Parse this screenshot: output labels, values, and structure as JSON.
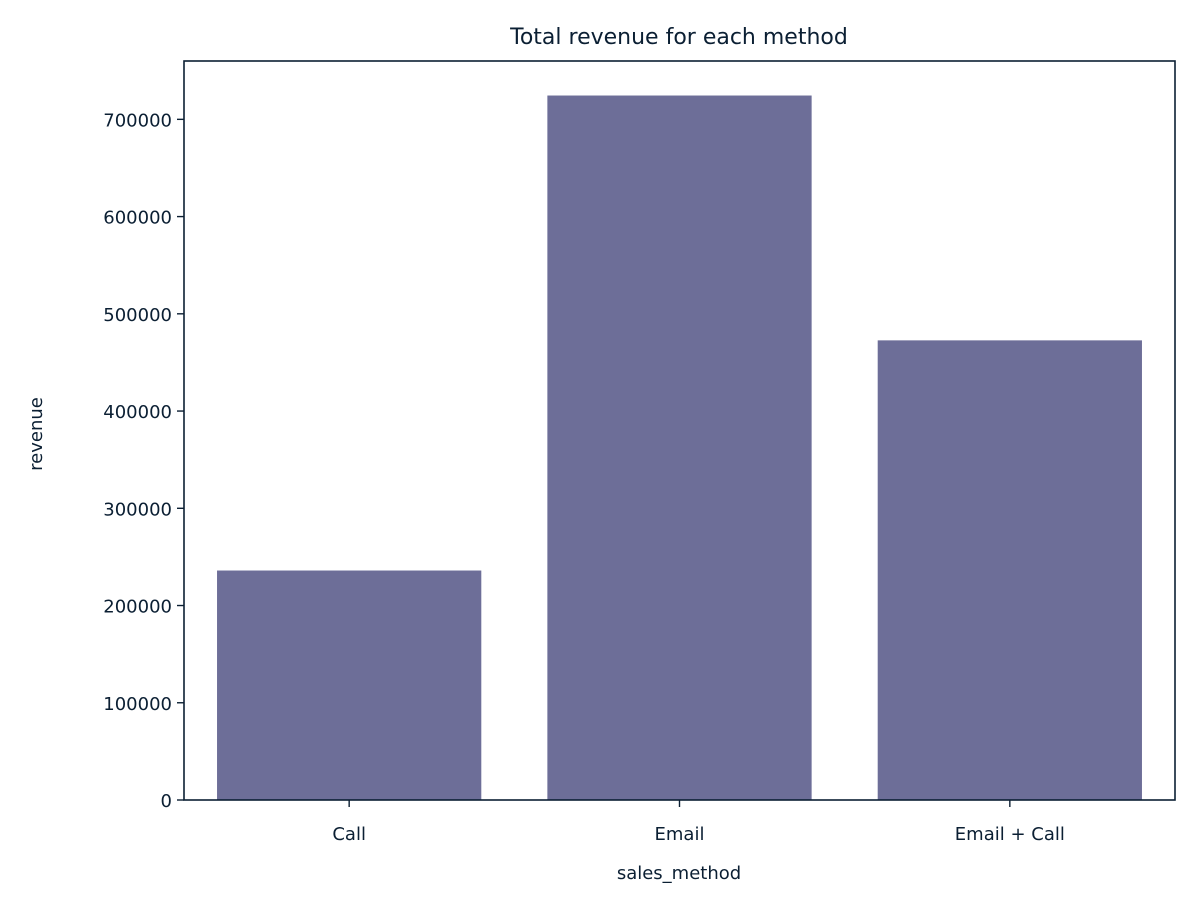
{
  "chart_data": {
    "type": "bar",
    "title": "Total revenue for each method",
    "xlabel": "sales_method",
    "ylabel": "revenue",
    "categories": [
      "Call",
      "Email",
      "Email + Call"
    ],
    "values": [
      236000,
      724500,
      472700
    ],
    "ylim": [
      0,
      760000
    ],
    "yticks": [
      0,
      100000,
      200000,
      300000,
      400000,
      500000,
      600000,
      700000
    ],
    "ytick_labels": [
      "0",
      "100000",
      "200000",
      "300000",
      "400000",
      "500000",
      "600000",
      "700000"
    ],
    "grid": false,
    "legend": "none",
    "colors": {
      "bar": "#6d6e98",
      "axis": "#0b1f33",
      "text": "#0b1f33",
      "background": "#ffffff"
    }
  }
}
